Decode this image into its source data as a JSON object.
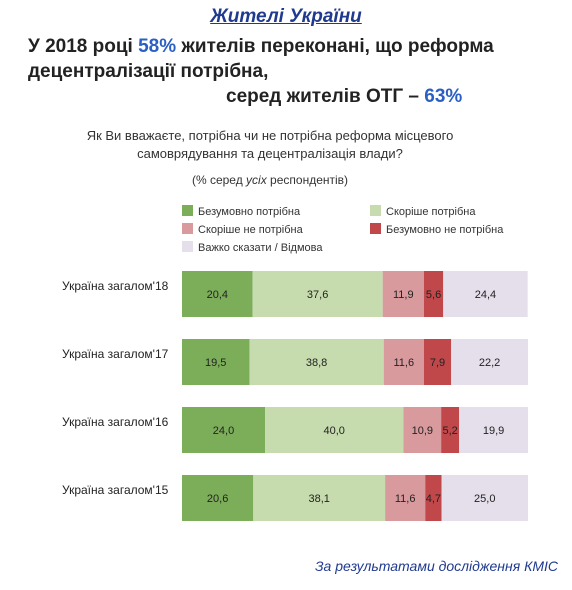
{
  "header": {
    "title": "Жителі України",
    "line1_prefix": "У 2018 році ",
    "line1_accent": "58%",
    "line1_suffix": " жителів переконані, що реформа",
    "line2": "децентралізації потрібна,",
    "line3_prefix": "серед жителів ОТГ – ",
    "line3_accent": "63%"
  },
  "question": "Як Ви вважаєте, потрібна чи не потрібна реформа місцевого самоврядування та децентралізація влади?",
  "base": {
    "prefix": "(% серед ",
    "emph": "усіх",
    "suffix": " респондентів)"
  },
  "source": "За результатами дослідження КМІС",
  "colors": {
    "accent": "#2b5fc4",
    "title": "#1f3a8f"
  },
  "chart_data": {
    "type": "bar",
    "orientation": "horizontal",
    "stacked": true,
    "categories": [
      "Україна загалом'18",
      "Україна загалом'17",
      "Україна загалом'16",
      "Україна загалом'15"
    ],
    "series": [
      {
        "name": "Безумовно потрібна",
        "color": "#7cae5a",
        "values": [
          20.4,
          19.5,
          24.0,
          20.6
        ],
        "labels": [
          "20,4",
          "19,5",
          "24,0",
          "20,6"
        ]
      },
      {
        "name": "Скоріше потрібна",
        "color": "#c6dcae",
        "values": [
          37.6,
          38.8,
          40.0,
          38.1
        ],
        "labels": [
          "37,6",
          "38,8",
          "40,0",
          "38,1"
        ]
      },
      {
        "name": "Скоріше не потрібна",
        "color": "#d99a9e",
        "values": [
          11.9,
          11.6,
          10.9,
          11.6
        ],
        "labels": [
          "11,9",
          "11,6",
          "10,9",
          "11,6"
        ]
      },
      {
        "name": "Безумовно не потрібна",
        "color": "#c0474a",
        "values": [
          5.6,
          7.9,
          5.2,
          4.7
        ],
        "labels": [
          "5,6",
          "7,9",
          "5,2",
          "4,7"
        ]
      },
      {
        "name": "Важко сказати / Відмова",
        "color": "#e5dfeb",
        "values": [
          24.4,
          22.2,
          19.9,
          25.0
        ],
        "labels": [
          "24,4",
          "22,2",
          "19,9",
          "25,0"
        ]
      }
    ],
    "xlim": [
      0,
      100
    ],
    "grid": false,
    "legend_position": "top"
  }
}
